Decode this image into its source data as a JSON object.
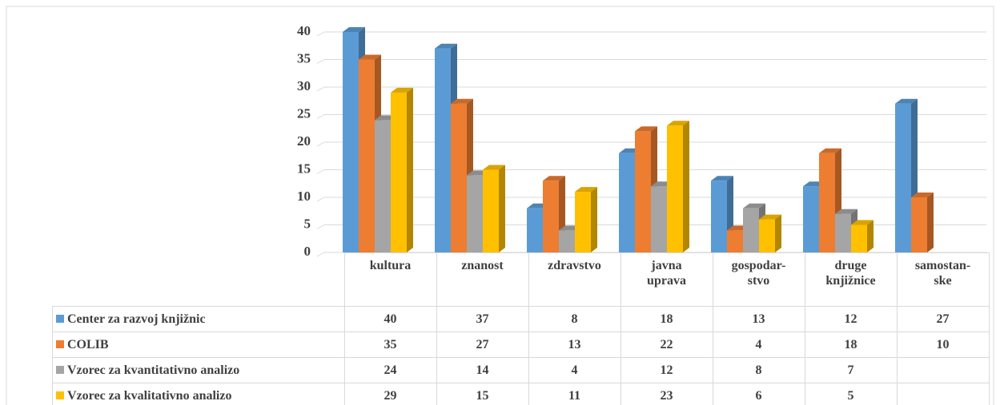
{
  "chart_data": {
    "type": "bar3d",
    "categories": [
      "kultura",
      "znanost",
      "zdravstvo",
      "javna uprava",
      "gospodar-stvo",
      "druge knjižnice",
      "samostan-ske"
    ],
    "series": [
      {
        "name": "Center za razvoj knjižnic",
        "color": "#5b9bd5",
        "values": [
          40,
          37,
          8,
          18,
          13,
          12,
          27
        ]
      },
      {
        "name": "COLIB",
        "color": "#ed7d31",
        "values": [
          35,
          27,
          13,
          22,
          4,
          18,
          10
        ]
      },
      {
        "name": "Vzorec za kvantitativno analizo",
        "color": "#a5a5a5",
        "values": [
          24,
          14,
          4,
          12,
          8,
          7,
          null
        ]
      },
      {
        "name": "Vzorec za kvalitativno analizo",
        "color": "#ffc000",
        "values": [
          29,
          15,
          11,
          23,
          6,
          5,
          null
        ]
      }
    ],
    "ylim": [
      0,
      40
    ],
    "yticks": [
      0,
      5,
      10,
      15,
      20,
      25,
      30,
      35,
      40
    ],
    "grid": true
  }
}
